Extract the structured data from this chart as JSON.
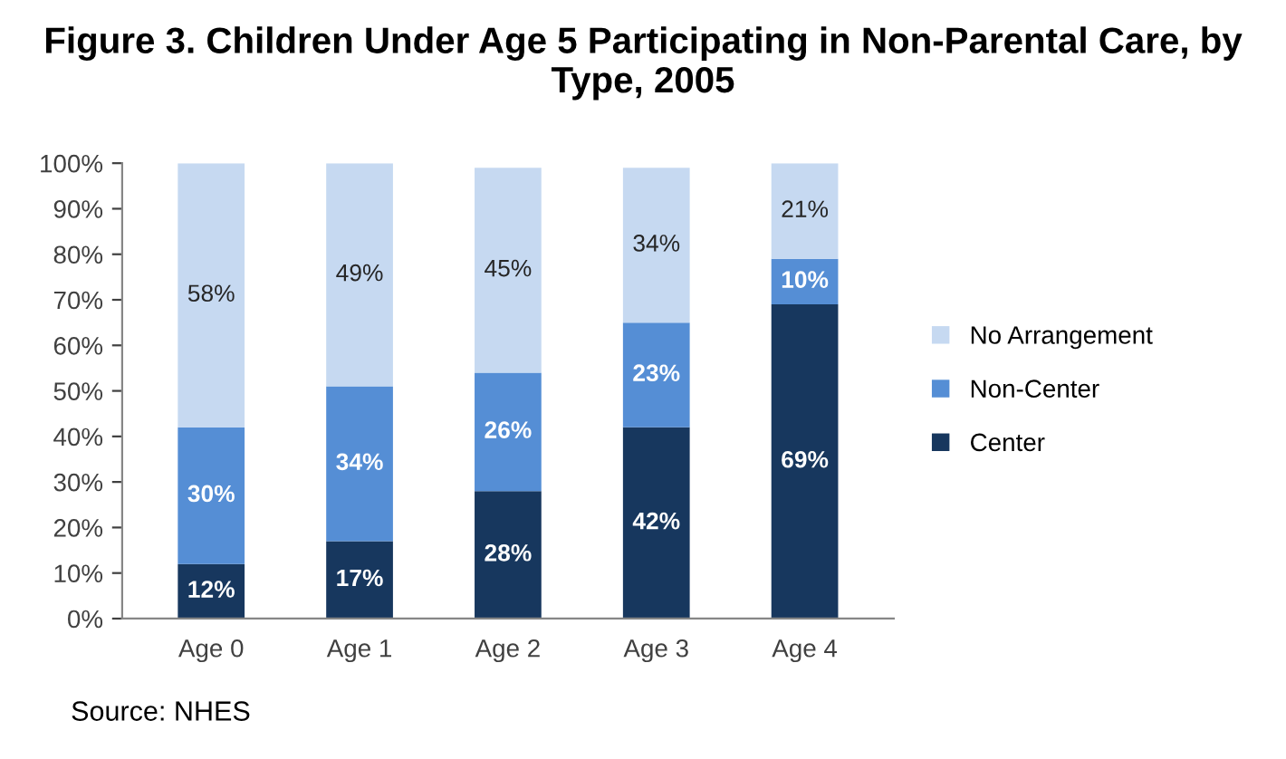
{
  "chart_data": {
    "type": "bar",
    "title": "Figure 3. Children Under Age 5 Participating in Non-Parental Care, by Type, 2005",
    "categories": [
      "Age 0",
      "Age 1",
      "Age 2",
      "Age 3",
      "Age 4"
    ],
    "stacked": true,
    "series": [
      {
        "name": "Center",
        "color": "#17375e",
        "values": [
          12,
          17,
          28,
          42,
          69
        ],
        "value_labels": [
          "12%",
          "17%",
          "28%",
          "42%",
          "69%"
        ]
      },
      {
        "name": "Non-Center",
        "color": "#558ed5",
        "values": [
          30,
          34,
          26,
          23,
          10
        ],
        "value_labels": [
          "30%",
          "34%",
          "26%",
          "23%",
          "10%"
        ]
      },
      {
        "name": "No Arrangement",
        "color": "#c6d9f1",
        "values": [
          58,
          49,
          45,
          34,
          21
        ],
        "value_labels": [
          "58%",
          "49%",
          "45%",
          "34%",
          "21%"
        ]
      }
    ],
    "ylim": [
      0,
      100
    ],
    "yticks": [
      {
        "value": 0,
        "label": "0%"
      },
      {
        "value": 10,
        "label": "10%"
      },
      {
        "value": 20,
        "label": "20%"
      },
      {
        "value": 30,
        "label": "30%"
      },
      {
        "value": 40,
        "label": "40%"
      },
      {
        "value": 50,
        "label": "50%"
      },
      {
        "value": 60,
        "label": "60%"
      },
      {
        "value": 70,
        "label": "70%"
      },
      {
        "value": 80,
        "label": "80%"
      },
      {
        "value": 90,
        "label": "90%"
      },
      {
        "value": 100,
        "label": "100%"
      }
    ],
    "grid": false,
    "legend": "right",
    "annotations": [
      "Source: NHES"
    ]
  }
}
